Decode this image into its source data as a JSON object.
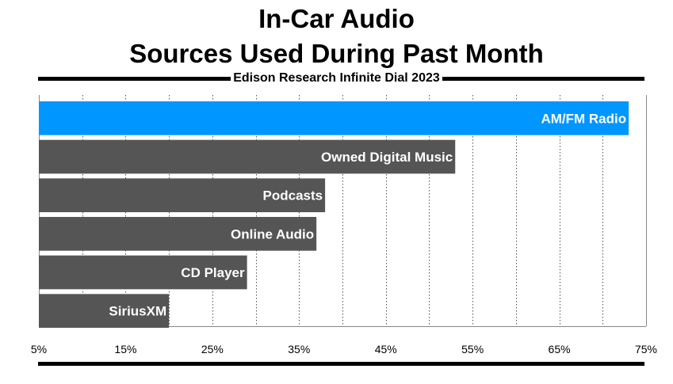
{
  "header": {
    "title_line1": "In-Car Audio",
    "title_line2": "Sources Used During Past Month",
    "subtitle": "Edison Research Infinite Dial 2023"
  },
  "colors": {
    "highlight": "#0096ff",
    "bar": "#555555",
    "rule": "#000000"
  },
  "chart_data": {
    "type": "bar",
    "orientation": "horizontal",
    "title": "In-Car Audio Sources Used During Past Month",
    "subtitle": "Edison Research Infinite Dial 2023",
    "categories": [
      "AM/FM Radio",
      "Owned Digital Music",
      "Podcasts",
      "Online Audio",
      "CD Player",
      "SiriusXM"
    ],
    "values": [
      73,
      53,
      38,
      37,
      29,
      20
    ],
    "highlight": [
      "AM/FM Radio"
    ],
    "unit": "%",
    "xlim": [
      5,
      75
    ],
    "ticks": [
      "5%",
      "15%",
      "25%",
      "35%",
      "45%",
      "55%",
      "65%",
      "75%"
    ],
    "tick_values": [
      5,
      15,
      25,
      35,
      45,
      55,
      65,
      75
    ],
    "grid_step": 5,
    "xlabel": "",
    "ylabel": ""
  }
}
